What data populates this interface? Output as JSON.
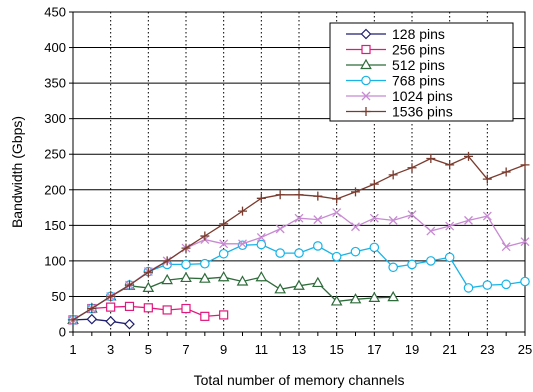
{
  "chart_data": {
    "type": "line",
    "xlabel": "Total number of memory channels",
    "ylabel": "Bandwidth (Gbps)",
    "xlim": [
      1,
      25
    ],
    "ylim": [
      0,
      450
    ],
    "x_ticks": [
      1,
      3,
      5,
      7,
      9,
      11,
      13,
      15,
      17,
      19,
      21,
      23,
      25
    ],
    "y_ticks": [
      0,
      50,
      100,
      150,
      200,
      250,
      300,
      350,
      400,
      450
    ],
    "grid": "horizontal solid, vertical dotted",
    "legend_position": "top-right",
    "series": [
      {
        "name": "128 pins",
        "color": "#1f1f6e",
        "marker": "diamond",
        "x": [
          1,
          2,
          3,
          4
        ],
        "values": [
          17,
          18,
          15,
          11
        ]
      },
      {
        "name": "256 pins",
        "color": "#e0197d",
        "marker": "square",
        "x": [
          1,
          2,
          3,
          4,
          5,
          6,
          7,
          8,
          9
        ],
        "values": [
          17,
          33,
          35,
          36,
          34,
          31,
          33,
          22,
          24
        ]
      },
      {
        "name": "512 pins",
        "color": "#2e6b3a",
        "marker": "triangle",
        "x": [
          1,
          2,
          3,
          4,
          5,
          6,
          7,
          8,
          9,
          10,
          11,
          12,
          13,
          14,
          15,
          16,
          17,
          18
        ],
        "values": [
          17,
          33,
          50,
          65,
          62,
          73,
          76,
          75,
          77,
          71,
          77,
          60,
          65,
          69,
          43,
          46,
          48,
          49
        ]
      },
      {
        "name": "768 pins",
        "color": "#19b3e6",
        "marker": "circle",
        "x": [
          1,
          2,
          3,
          4,
          5,
          6,
          7,
          8,
          9,
          10,
          11,
          12,
          13,
          14,
          15,
          16,
          17,
          18,
          19,
          20,
          21,
          22,
          23,
          24,
          25
        ],
        "values": [
          17,
          33,
          50,
          66,
          85,
          95,
          95,
          96,
          110,
          122,
          123,
          111,
          111,
          121,
          106,
          113,
          119,
          91,
          95,
          100,
          105,
          62,
          66,
          67,
          71
        ]
      },
      {
        "name": "1024 pins",
        "color": "#c88ad2",
        "marker": "x",
        "x": [
          1,
          2,
          3,
          4,
          5,
          6,
          7,
          8,
          9,
          10,
          11,
          12,
          13,
          14,
          15,
          16,
          17,
          18,
          19,
          20,
          21,
          22,
          23,
          24,
          25
        ],
        "values": [
          17,
          33,
          50,
          66,
          85,
          100,
          118,
          130,
          124,
          124,
          133,
          145,
          160,
          158,
          168,
          148,
          160,
          157,
          165,
          142,
          149,
          157,
          163,
          120,
          127
        ]
      },
      {
        "name": "1536 pins",
        "color": "#7a3b2e",
        "marker": "plus",
        "x": [
          1,
          2,
          3,
          4,
          5,
          6,
          7,
          8,
          9,
          10,
          11,
          12,
          13,
          14,
          15,
          16,
          17,
          18,
          19,
          20,
          21,
          22,
          23,
          24,
          25
        ],
        "values": [
          17,
          33,
          50,
          66,
          84,
          100,
          118,
          135,
          152,
          170,
          188,
          193,
          193,
          191,
          187,
          197,
          208,
          221,
          231,
          244,
          235,
          247,
          215,
          225,
          235
        ]
      }
    ]
  }
}
